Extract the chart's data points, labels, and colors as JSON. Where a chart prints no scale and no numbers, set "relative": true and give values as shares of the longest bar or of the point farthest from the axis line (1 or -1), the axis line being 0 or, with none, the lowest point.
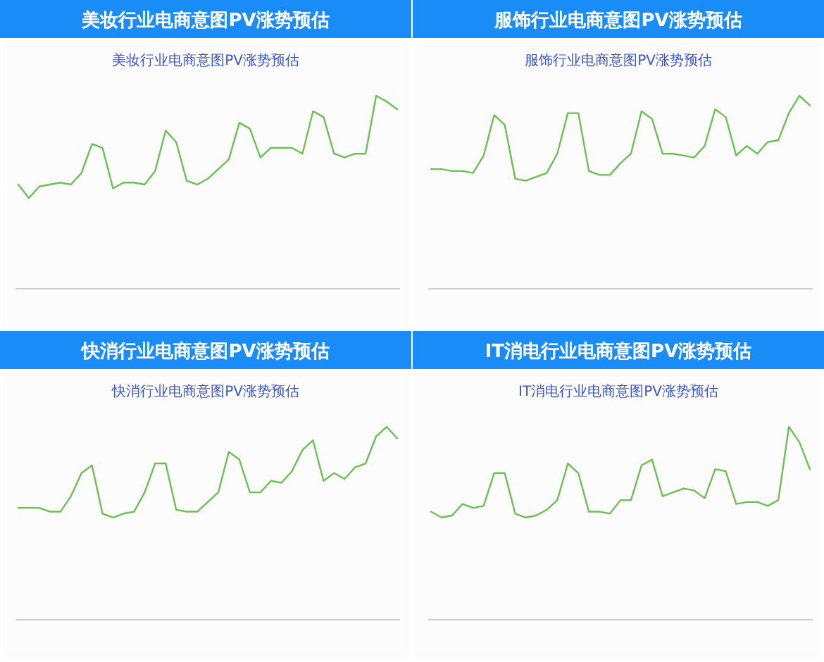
{
  "chart_data": [
    {
      "type": "line",
      "title": "美妆行业电商意图PV涨势预估",
      "subtitle": "美妆行业电商意图PV涨势预估",
      "relative": true,
      "color": "#6cbf55",
      "categories": [
        null,
        null,
        null,
        null,
        null,
        null,
        null,
        null,
        null,
        null,
        null,
        null,
        null,
        null,
        null,
        null,
        null,
        null,
        null,
        null,
        null,
        null,
        null,
        null,
        null,
        null,
        null,
        null,
        null,
        null,
        null,
        null,
        null,
        null,
        null,
        null,
        null
      ],
      "values": [
        0.54,
        0.47,
        0.53,
        0.54,
        0.55,
        0.54,
        0.6,
        0.75,
        0.73,
        0.52,
        0.55,
        0.55,
        0.54,
        0.61,
        0.82,
        0.76,
        0.56,
        0.54,
        0.57,
        0.62,
        0.67,
        0.86,
        0.83,
        0.68,
        0.73,
        0.73,
        0.73,
        0.7,
        0.92,
        0.89,
        0.7,
        0.68,
        0.7,
        0.7,
        1,
        0.97,
        0.93
      ]
    },
    {
      "type": "line",
      "title": "服饰行业电商意图PV涨势预估",
      "subtitle": "服饰行业电商意图PV涨势预估",
      "relative": true,
      "color": "#6cbf55",
      "categories": [
        null,
        null,
        null,
        null,
        null,
        null,
        null,
        null,
        null,
        null,
        null,
        null,
        null,
        null,
        null,
        null,
        null,
        null,
        null,
        null,
        null,
        null,
        null,
        null,
        null,
        null,
        null,
        null,
        null,
        null,
        null,
        null,
        null,
        null,
        null,
        null,
        null
      ],
      "values": [
        0.62,
        0.62,
        0.61,
        0.61,
        0.6,
        0.69,
        0.9,
        0.85,
        0.57,
        0.56,
        0.58,
        0.6,
        0.7,
        0.91,
        0.91,
        0.61,
        0.59,
        0.59,
        0.65,
        0.7,
        0.92,
        0.88,
        0.7,
        0.7,
        0.69,
        0.68,
        0.74,
        0.93,
        0.89,
        0.69,
        0.74,
        0.7,
        0.76,
        0.77,
        0.91,
        1,
        0.95
      ]
    },
    {
      "type": "line",
      "title": "快消行业电商意图PV涨势预估",
      "subtitle": "快消行业电商意图PV涨势预估",
      "relative": true,
      "color": "#6cbf55",
      "categories": [
        null,
        null,
        null,
        null,
        null,
        null,
        null,
        null,
        null,
        null,
        null,
        null,
        null,
        null,
        null,
        null,
        null,
        null,
        null,
        null,
        null,
        null,
        null,
        null,
        null,
        null,
        null,
        null,
        null,
        null,
        null,
        null,
        null,
        null,
        null,
        null,
        null
      ],
      "values": [
        0.58,
        0.58,
        0.58,
        0.56,
        0.56,
        0.64,
        0.76,
        0.8,
        0.55,
        0.53,
        0.55,
        0.56,
        0.66,
        0.81,
        0.81,
        0.57,
        0.56,
        0.56,
        0.61,
        0.66,
        0.87,
        0.83,
        0.66,
        0.66,
        0.72,
        0.71,
        0.77,
        0.88,
        0.93,
        0.72,
        0.76,
        0.73,
        0.79,
        0.81,
        0.95,
        1,
        0.94
      ]
    },
    {
      "type": "line",
      "title": "IT消电行业电商意图PV涨势预估",
      "subtitle": "IT消电行业电商意图PV涨势预估",
      "relative": true,
      "color": "#6cbf55",
      "categories": [
        null,
        null,
        null,
        null,
        null,
        null,
        null,
        null,
        null,
        null,
        null,
        null,
        null,
        null,
        null,
        null,
        null,
        null,
        null,
        null,
        null,
        null,
        null,
        null,
        null,
        null,
        null,
        null,
        null,
        null,
        null,
        null,
        null,
        null,
        null,
        null,
        null
      ],
      "values": [
        0.56,
        0.53,
        0.54,
        0.6,
        0.58,
        0.59,
        0.76,
        0.76,
        0.55,
        0.53,
        0.54,
        0.57,
        0.62,
        0.81,
        0.76,
        0.56,
        0.56,
        0.55,
        0.62,
        0.62,
        0.8,
        0.83,
        0.64,
        0.66,
        0.68,
        0.67,
        0.63,
        0.78,
        0.77,
        0.6,
        0.61,
        0.61,
        0.59,
        0.62,
        1,
        0.92,
        0.78
      ]
    }
  ]
}
